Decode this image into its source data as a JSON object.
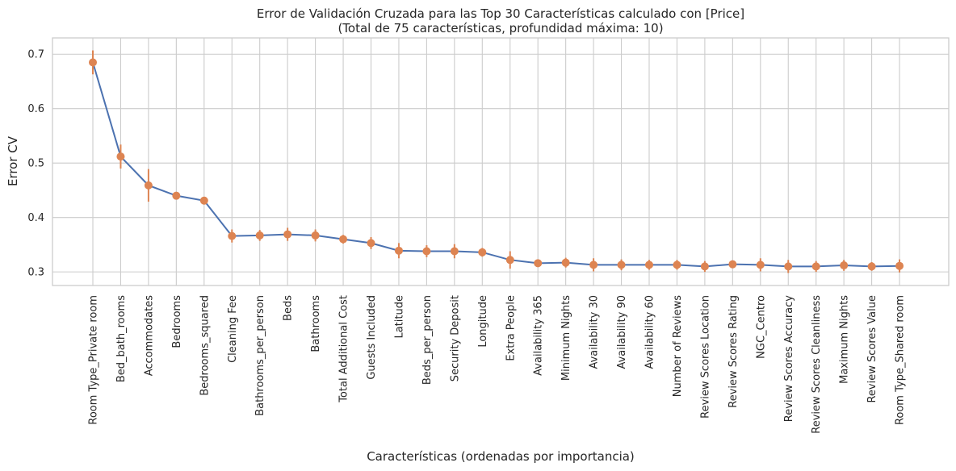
{
  "chart_data": {
    "type": "line",
    "title": "Error de Validación Cruzada para las Top 30 Características calculado con [Price]",
    "subtitle": "(Total de 75 características, profundidad máxima: 10)",
    "xlabel": "Características (ordenadas por importancia)",
    "ylabel": "Error CV",
    "ylim": [
      0.275,
      0.73
    ],
    "yticks": [
      "0.3",
      "0.4",
      "0.5",
      "0.6",
      "0.7"
    ],
    "grid": true,
    "colors": {
      "line": "#4c72b0",
      "marker": "#dd8452",
      "grid": "#cccccc"
    },
    "categories": [
      "Room Type_Private room",
      "Bed_bath_rooms",
      "Accommodates",
      "Bedrooms",
      "Bedrooms_squared",
      "Cleaning Fee",
      "Bathrooms_per_person",
      "Beds",
      "Bathrooms",
      "Total Additional Cost",
      "Guests Included",
      "Latitude",
      "Beds_per_person",
      "Security Deposit",
      "Longitude",
      "Extra People",
      "Availability 365",
      "Minimum Nights",
      "Availability 30",
      "Availability 90",
      "Availability 60",
      "Number of Reviews",
      "Review Scores Location",
      "Review Scores Rating",
      "NGC_Centro",
      "Review Scores Accuracy",
      "Review Scores Cleanliness",
      "Maximum Nights",
      "Review Scores Value",
      "Room Type_Shared room"
    ],
    "values": [
      0.685,
      0.512,
      0.459,
      0.44,
      0.431,
      0.366,
      0.367,
      0.369,
      0.367,
      0.36,
      0.353,
      0.339,
      0.338,
      0.338,
      0.336,
      0.322,
      0.316,
      0.317,
      0.313,
      0.313,
      0.313,
      0.313,
      0.31,
      0.314,
      0.313,
      0.31,
      0.31,
      0.312,
      0.31,
      0.311
    ],
    "errors": [
      0.022,
      0.022,
      0.03,
      0.006,
      0.004,
      0.012,
      0.01,
      0.012,
      0.011,
      0.008,
      0.011,
      0.014,
      0.011,
      0.013,
      0.008,
      0.016,
      0.007,
      0.009,
      0.012,
      0.01,
      0.009,
      0.009,
      0.01,
      0.007,
      0.012,
      0.012,
      0.01,
      0.01,
      0.008,
      0.012
    ]
  }
}
